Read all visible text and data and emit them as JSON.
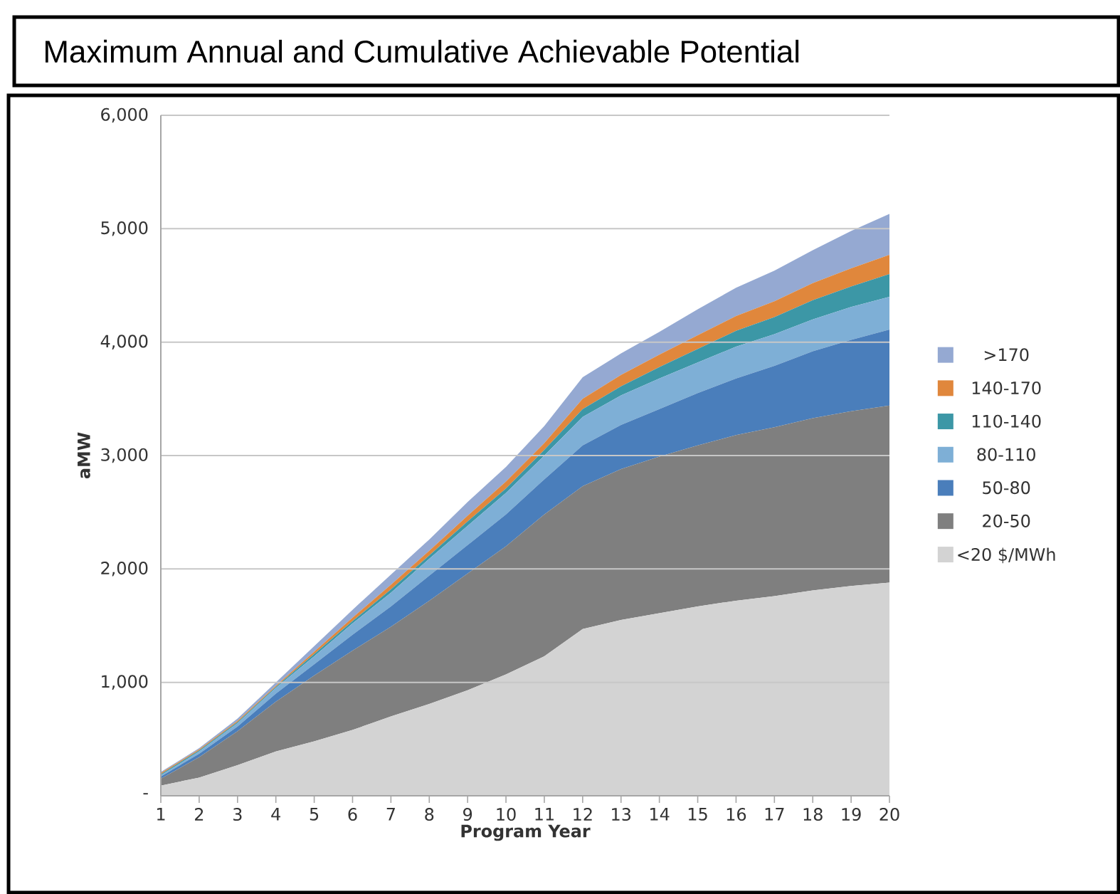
{
  "chart_data": {
    "type": "area",
    "title": "Maximum Annual and Cumulative Achievable Potential",
    "xlabel": "Program Year",
    "ylabel": "aMW",
    "categories": [
      "1",
      "2",
      "3",
      "4",
      "5",
      "6",
      "7",
      "8",
      "9",
      "10",
      "11",
      "12",
      "13",
      "14",
      "15",
      "16",
      "17",
      "18",
      "19",
      "20"
    ],
    "stacked": true,
    "grid": "y",
    "legend": "right",
    "ylim": [
      0,
      6000
    ],
    "yticks": [
      {
        "value": 0,
        "label": "-"
      },
      {
        "value": 1000,
        "label": "1,000"
      },
      {
        "value": 2000,
        "label": "2,000"
      },
      {
        "value": 3000,
        "label": "3,000"
      },
      {
        "value": 4000,
        "label": "4,000"
      },
      {
        "value": 5000,
        "label": "5,000"
      },
      {
        "value": 6000,
        "label": "6,000"
      }
    ],
    "series": [
      {
        "name": "<20 $/MWh",
        "color": "#d3d3d3",
        "values": [
          90,
          160,
          270,
          390,
          480,
          580,
          700,
          810,
          930,
          1070,
          1230,
          1470,
          1550,
          1610,
          1670,
          1720,
          1760,
          1810,
          1850,
          1880
        ]
      },
      {
        "name": "20-50",
        "color": "#7f7f7f",
        "values": [
          60,
          180,
          300,
          440,
          580,
          700,
          790,
          910,
          1030,
          1130,
          1250,
          1260,
          1330,
          1380,
          1420,
          1460,
          1490,
          1520,
          1540,
          1560
        ]
      },
      {
        "name": "50-80",
        "color": "#4a7ebb",
        "values": [
          20,
          30,
          40,
          70,
          100,
          140,
          180,
          220,
          250,
          280,
          310,
          360,
          390,
          420,
          460,
          500,
          540,
          590,
          630,
          670
        ]
      },
      {
        "name": "80-110",
        "color": "#7eafd6",
        "values": [
          10,
          20,
          30,
          50,
          70,
          100,
          120,
          150,
          170,
          190,
          210,
          250,
          260,
          270,
          270,
          280,
          280,
          280,
          290,
          290
        ]
      },
      {
        "name": "110-140",
        "color": "#3c97a6",
        "values": [
          10,
          10,
          10,
          10,
          20,
          20,
          30,
          30,
          40,
          40,
          50,
          70,
          80,
          100,
          120,
          140,
          150,
          170,
          180,
          200
        ]
      },
      {
        "name": "140-170",
        "color": "#e0873c",
        "values": [
          10,
          10,
          10,
          10,
          20,
          30,
          40,
          40,
          50,
          60,
          60,
          90,
          100,
          110,
          120,
          130,
          140,
          150,
          160,
          170
        ]
      },
      {
        "name": ">170",
        "color": "#95a9d2",
        "values": [
          10,
          10,
          20,
          30,
          50,
          70,
          90,
          100,
          120,
          130,
          150,
          190,
          190,
          200,
          230,
          250,
          270,
          290,
          330,
          360
        ]
      }
    ]
  }
}
